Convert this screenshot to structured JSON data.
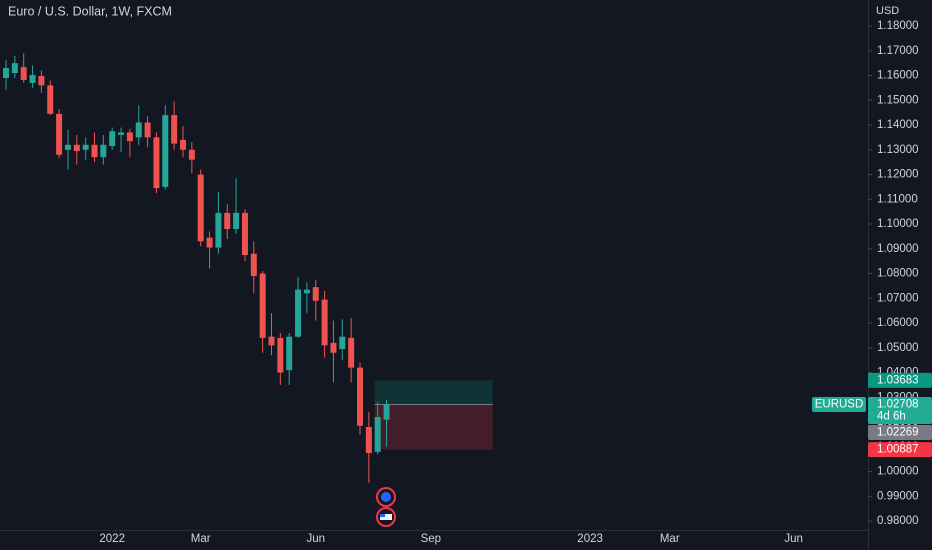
{
  "chart_data": {
    "type": "candlestick",
    "title": "Euro / U.S. Dollar, 1W, FXCM",
    "y_axis_label": "USD",
    "up_color": "#26a69a",
    "down_color": "#ef5350",
    "ylim": [
      0.9764,
      1.1905
    ],
    "yticks": [
      {
        "value": 0.98,
        "label": "0.98000"
      },
      {
        "value": 0.99,
        "label": "0.99000"
      },
      {
        "value": 1.0,
        "label": "1.00000"
      },
      {
        "value": 1.01,
        "label": "1.01000"
      },
      {
        "value": 1.02,
        "label": "1.02000"
      },
      {
        "value": 1.03,
        "label": "1.03000"
      },
      {
        "value": 1.04,
        "label": "1.04000"
      },
      {
        "value": 1.05,
        "label": "1.05000"
      },
      {
        "value": 1.06,
        "label": "1.06000"
      },
      {
        "value": 1.07,
        "label": "1.07000"
      },
      {
        "value": 1.08,
        "label": "1.08000"
      },
      {
        "value": 1.09,
        "label": "1.09000"
      },
      {
        "value": 1.1,
        "label": "1.10000"
      },
      {
        "value": 1.11,
        "label": "1.11000"
      },
      {
        "value": 1.12,
        "label": "1.12000"
      },
      {
        "value": 1.13,
        "label": "1.13000"
      },
      {
        "value": 1.14,
        "label": "1.14000"
      },
      {
        "value": 1.15,
        "label": "1.15000"
      },
      {
        "value": 1.16,
        "label": "1.16000"
      },
      {
        "value": 1.17,
        "label": "1.17000"
      },
      {
        "value": 1.18,
        "label": "1.18000"
      }
    ],
    "grid": false,
    "categories": [
      null,
      null,
      null,
      null,
      null,
      null,
      null,
      null,
      null,
      null,
      null,
      null,
      "2022",
      null,
      null,
      null,
      null,
      null,
      null,
      null,
      null,
      null,
      "Mar",
      null,
      null,
      null,
      null,
      null,
      null,
      null,
      null,
      null,
      null,
      null,
      null,
      "Jun",
      null,
      null,
      null,
      null,
      null,
      null,
      null,
      null,
      null,
      null,
      null,
      null,
      "Sep",
      null,
      null,
      null,
      null,
      null,
      null,
      null,
      null,
      null,
      null,
      null,
      null,
      null,
      null,
      null,
      null,
      null,
      "2023",
      null,
      null,
      null,
      null,
      null,
      null,
      null,
      null,
      "Mar",
      null,
      null,
      null,
      null,
      null,
      null,
      null,
      null,
      null,
      null,
      null,
      null,
      null,
      "Jun",
      null,
      null,
      null,
      null,
      null,
      null,
      null
    ],
    "open": [
      1.159,
      1.161,
      1.1634,
      1.157,
      1.1598,
      1.156,
      1.1445,
      1.13,
      1.132,
      1.13,
      1.132,
      1.127,
      1.1315,
      1.136,
      1.137,
      1.135,
      1.141,
      1.135,
      1.115,
      1.144,
      1.134,
      1.13,
      1.12,
      1.0945,
      1.0905,
      1.1045,
      1.098,
      1.1045,
      1.088,
      1.08,
      1.0545,
      1.054,
      1.041,
      1.0545,
      1.072,
      1.0745,
      1.0695,
      1.052,
      1.0495,
      1.054,
      1.042,
      1.018,
      1.008,
      1.021,
      null,
      null,
      null,
      null,
      null,
      null,
      null,
      null,
      null,
      null,
      null,
      null,
      null,
      null,
      null,
      null,
      null,
      null,
      null,
      null,
      null,
      null,
      null,
      null,
      null,
      null,
      null,
      null,
      null,
      null,
      null,
      null,
      null,
      null,
      null,
      null,
      null,
      null,
      null,
      null,
      null,
      null,
      null,
      null,
      null,
      null,
      null,
      null,
      null,
      null,
      null,
      null,
      null
    ],
    "high": [
      1.1663,
      1.168,
      1.169,
      1.164,
      1.162,
      1.158,
      1.1465,
      1.138,
      1.136,
      1.135,
      1.137,
      1.136,
      1.139,
      1.139,
      1.1385,
      1.148,
      1.1435,
      1.137,
      1.148,
      1.1495,
      1.1395,
      1.133,
      1.122,
      1.097,
      1.113,
      1.108,
      1.1185,
      1.106,
      1.093,
      1.081,
      1.064,
      1.056,
      1.056,
      1.0785,
      1.0765,
      1.0775,
      1.073,
      1.061,
      1.0615,
      1.062,
      1.044,
      1.024,
      1.028,
      1.029,
      null,
      null,
      null,
      null,
      null,
      null,
      null,
      null,
      null,
      null,
      null,
      null,
      null,
      null,
      null,
      null,
      null,
      null,
      null,
      null,
      null,
      null,
      null,
      null,
      null,
      null,
      null,
      null,
      null,
      null,
      null,
      null,
      null,
      null,
      null,
      null,
      null,
      null,
      null,
      null,
      null,
      null,
      null,
      null,
      null,
      null,
      null,
      null,
      null,
      null,
      null,
      null,
      null
    ],
    "low": [
      1.1541,
      1.159,
      1.157,
      1.155,
      1.153,
      1.144,
      1.1265,
      1.122,
      1.124,
      1.126,
      1.125,
      1.124,
      1.13,
      1.129,
      1.127,
      1.132,
      1.131,
      1.1125,
      1.114,
      1.13,
      1.127,
      1.1205,
      1.091,
      1.082,
      1.088,
      1.094,
      1.096,
      1.085,
      1.072,
      1.048,
      1.047,
      1.035,
      1.035,
      1.054,
      1.064,
      1.061,
      1.046,
      1.036,
      1.045,
      1.036,
      1.015,
      0.9955,
      1.007,
      1.01,
      null,
      null,
      null,
      null,
      null,
      null,
      null,
      null,
      null,
      null,
      null,
      null,
      null,
      null,
      null,
      null,
      null,
      null,
      null,
      null,
      null,
      null,
      null,
      null,
      null,
      null,
      null,
      null,
      null,
      null,
      null,
      null,
      null,
      null,
      null,
      null,
      null,
      null,
      null,
      null,
      null,
      null,
      null,
      null,
      null,
      null,
      null,
      null,
      null,
      null,
      null,
      null,
      null
    ],
    "close": [
      1.163,
      1.165,
      1.1582,
      1.1602,
      1.156,
      1.1445,
      1.128,
      1.132,
      1.1295,
      1.132,
      1.127,
      1.132,
      1.1375,
      1.137,
      1.1335,
      1.141,
      1.135,
      1.1145,
      1.144,
      1.1325,
      1.13,
      1.126,
      1.093,
      1.0905,
      1.1045,
      1.098,
      1.1045,
      1.0875,
      1.079,
      1.054,
      1.051,
      1.04,
      1.0545,
      1.0735,
      1.0735,
      1.069,
      1.051,
      1.048,
      1.0545,
      1.042,
      1.0185,
      1.0075,
      1.022,
      1.0271,
      null,
      null,
      null,
      null,
      null,
      null,
      null,
      null,
      null,
      null,
      null,
      null,
      null,
      null,
      null,
      null,
      null,
      null,
      null,
      null,
      null,
      null,
      null,
      null,
      null,
      null,
      null,
      null,
      null,
      null,
      null,
      null,
      null,
      null,
      null,
      null,
      null,
      null,
      null,
      null,
      null,
      null,
      null,
      null,
      null,
      null,
      null,
      null,
      null,
      null,
      null,
      null,
      null
    ],
    "price_badges": [
      {
        "value": 1.03683,
        "label": "1.03683",
        "color": "#089981"
      },
      {
        "value": 1.02708,
        "label": "1.02708",
        "symbol": "EURUSD",
        "countdown": "4d 6h",
        "color": "#22ab94"
      },
      {
        "value": 1.02269,
        "label": "1.02269",
        "color": "#787b86"
      },
      {
        "value": 1.00887,
        "label": "1.00887",
        "color": "#f23645"
      }
    ]
  }
}
